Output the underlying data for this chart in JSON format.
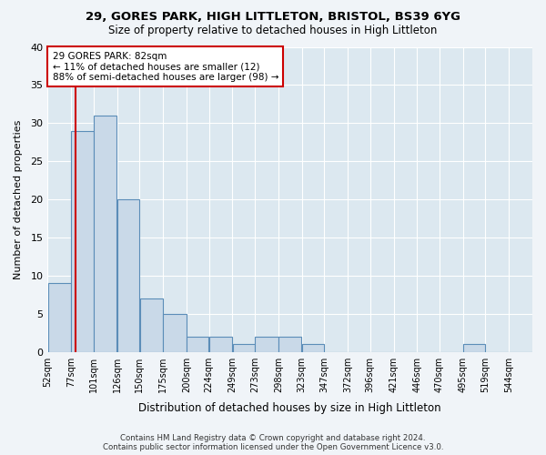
{
  "title1": "29, GORES PARK, HIGH LITTLETON, BRISTOL, BS39 6YG",
  "title2": "Size of property relative to detached houses in High Littleton",
  "xlabel": "Distribution of detached houses by size in High Littleton",
  "ylabel": "Number of detached properties",
  "bin_labels": [
    "52sqm",
    "77sqm",
    "101sqm",
    "126sqm",
    "150sqm",
    "175sqm",
    "200sqm",
    "224sqm",
    "249sqm",
    "273sqm",
    "298sqm",
    "323sqm",
    "347sqm",
    "372sqm",
    "396sqm",
    "421sqm",
    "446sqm",
    "470sqm",
    "495sqm",
    "519sqm",
    "544sqm"
  ],
  "bar_values": [
    9,
    29,
    31,
    20,
    7,
    5,
    2,
    2,
    1,
    2,
    2,
    1,
    0,
    0,
    0,
    0,
    0,
    0,
    1,
    0,
    0
  ],
  "bar_color": "#c9d9e8",
  "bar_edge_color": "#5b8db8",
  "red_line_x": 82,
  "bin_edges": [
    52,
    77,
    101,
    126,
    150,
    175,
    200,
    224,
    249,
    273,
    298,
    323,
    347,
    372,
    396,
    421,
    446,
    470,
    495,
    519,
    544,
    569
  ],
  "annotation_text": "29 GORES PARK: 82sqm\n← 11% of detached houses are smaller (12)\n88% of semi-detached houses are larger (98) →",
  "annotation_box_color": "#ffffff",
  "annotation_border_color": "#cc0000",
  "ylim": [
    0,
    40
  ],
  "yticks": [
    0,
    5,
    10,
    15,
    20,
    25,
    30,
    35,
    40
  ],
  "footer1": "Contains HM Land Registry data © Crown copyright and database right 2024.",
  "footer2": "Contains public sector information licensed under the Open Government Licence v3.0.",
  "fig_facecolor": "#f0f4f8",
  "plot_facecolor": "#dce8f0"
}
